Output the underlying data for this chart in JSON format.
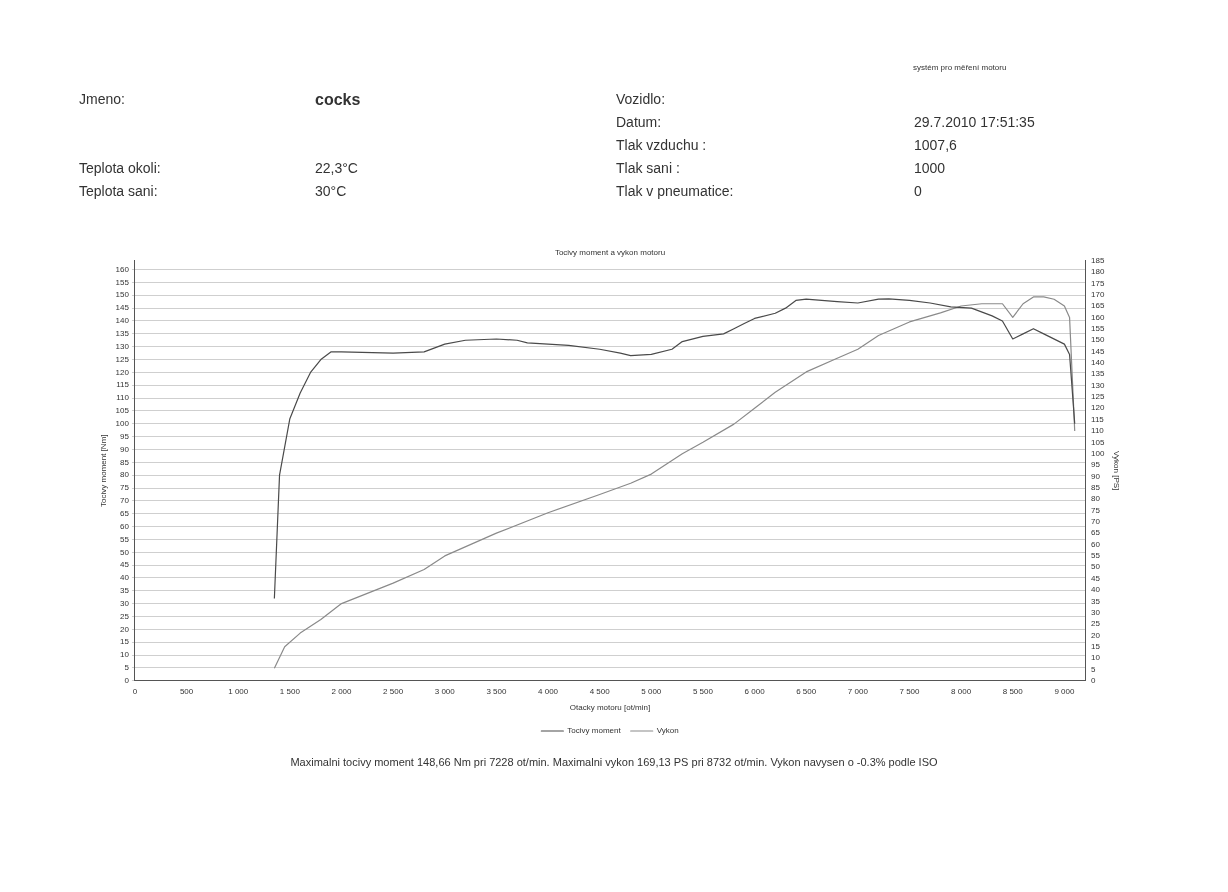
{
  "chart_data": {
    "type": "line",
    "title": "Tocivy moment a vykon motoru",
    "xlabel": "Otacky motoru [ot/min]",
    "ylabel": "Tocivy moment [Nm]",
    "y2label": "Vykon [PS]",
    "annotations": [
      "Jmeno:",
      "cocks",
      "Teplota okoli:",
      "22,3°C",
      "Teplota sani:",
      "30°C",
      "Vozidlo:",
      "Datum:",
      "29.7.2010 17:51:35",
      "Tlak vzduchu :",
      "1007,6",
      "Tlak sani :",
      "1000",
      "Tlak v pneumatice:",
      "0",
      "systém pro měření motoru",
      "Maximalni tocivy moment 148,66 Nm pri 7228 ot/min.  Maximalni vykon 169,13 PS pri 8732 ot/min.  Vykon navysen o -0.3% podle ISO"
    ],
    "series": [
      {
        "name": "Tocivy moment",
        "color": "#4a4a4a",
        "x": [
          1350,
          1400,
          1500,
          1600,
          1700,
          1800,
          1900,
          2000,
          2500,
          2800,
          3000,
          3200,
          3500,
          3700,
          3800,
          4200,
          4500,
          4700,
          4800,
          5000,
          5200,
          5300,
          5500,
          5700,
          5800,
          5900,
          6000,
          6200,
          6300,
          6400,
          6500,
          6800,
          7000,
          7200,
          7300,
          7500,
          7700,
          7900,
          8100,
          8300,
          8400,
          8500,
          8600,
          8700,
          8800,
          9000,
          9050,
          9100
        ],
        "values": [
          32,
          80,
          102,
          112,
          120,
          125,
          128,
          128,
          127.5,
          128,
          131,
          132.5,
          133,
          132.5,
          131.5,
          130.5,
          129,
          127.5,
          126.5,
          127,
          129,
          132,
          134,
          135,
          137,
          139,
          141,
          143,
          145,
          148,
          148.5,
          147.5,
          147,
          148.5,
          148.6,
          148,
          147,
          145.5,
          145,
          142,
          140,
          133,
          135,
          137,
          135,
          131,
          127,
          100
        ]
      },
      {
        "name": "Vykon",
        "color": "#8a8a8a",
        "axis": "y2",
        "x": [
          1350,
          1450,
          1600,
          1800,
          2000,
          2500,
          2800,
          3000,
          3500,
          4000,
          4500,
          4800,
          5000,
          5300,
          5500,
          5800,
          6000,
          6200,
          6500,
          6800,
          7000,
          7200,
          7500,
          7800,
          8000,
          8200,
          8400,
          8500,
          8600,
          8700,
          8800,
          8900,
          9000,
          9050,
          9100
        ],
        "values": [
          5.5,
          15,
          21,
          27,
          34,
          43,
          49,
          55,
          65,
          74,
          82,
          87,
          91,
          100,
          105,
          113,
          120,
          127,
          136,
          142,
          146,
          152,
          158,
          162,
          165,
          166,
          166,
          160,
          166,
          169,
          169,
          168,
          165,
          160,
          110
        ]
      }
    ],
    "xlim": [
      0,
      9200
    ],
    "xticks": [
      0,
      500,
      {
        "value": 1000,
        "label": "1 000"
      },
      {
        "value": 1500,
        "label": "1 500"
      },
      {
        "value": 2000,
        "label": "2 000"
      },
      {
        "value": 2500,
        "label": "2 500"
      },
      {
        "value": 3000,
        "label": "3 000"
      },
      {
        "value": 3500,
        "label": "3 500"
      },
      {
        "value": 4000,
        "label": "4 000"
      },
      {
        "value": 4500,
        "label": "4 500"
      },
      {
        "value": 5000,
        "label": "5 000"
      },
      {
        "value": 5500,
        "label": "5 500"
      },
      {
        "value": 6000,
        "label": "6 000"
      },
      {
        "value": 6500,
        "label": "6 500"
      },
      {
        "value": 7000,
        "label": "7 000"
      },
      {
        "value": 7500,
        "label": "7 500"
      },
      {
        "value": 8000,
        "label": "8 000"
      },
      {
        "value": 8500,
        "label": "8 500"
      },
      {
        "value": 9000,
        "label": "9 000"
      }
    ],
    "ylim": [
      0,
      163.5
    ],
    "yticks": [
      0,
      5,
      10,
      15,
      20,
      25,
      30,
      35,
      40,
      45,
      50,
      55,
      60,
      65,
      70,
      75,
      80,
      85,
      90,
      95,
      100,
      105,
      110,
      115,
      120,
      125,
      130,
      135,
      140,
      145,
      150,
      155,
      160
    ],
    "y2lim": [
      0,
      185
    ],
    "y2ticks": [
      0,
      5,
      10,
      15,
      20,
      25,
      30,
      35,
      40,
      45,
      50,
      55,
      60,
      65,
      70,
      75,
      80,
      85,
      90,
      95,
      100,
      105,
      110,
      115,
      120,
      125,
      130,
      135,
      140,
      145,
      150,
      155,
      160,
      165,
      170,
      175,
      180,
      185
    ],
    "grid": "y",
    "legend": "bottom",
    "marker": "none",
    "line_style": "solid"
  }
}
